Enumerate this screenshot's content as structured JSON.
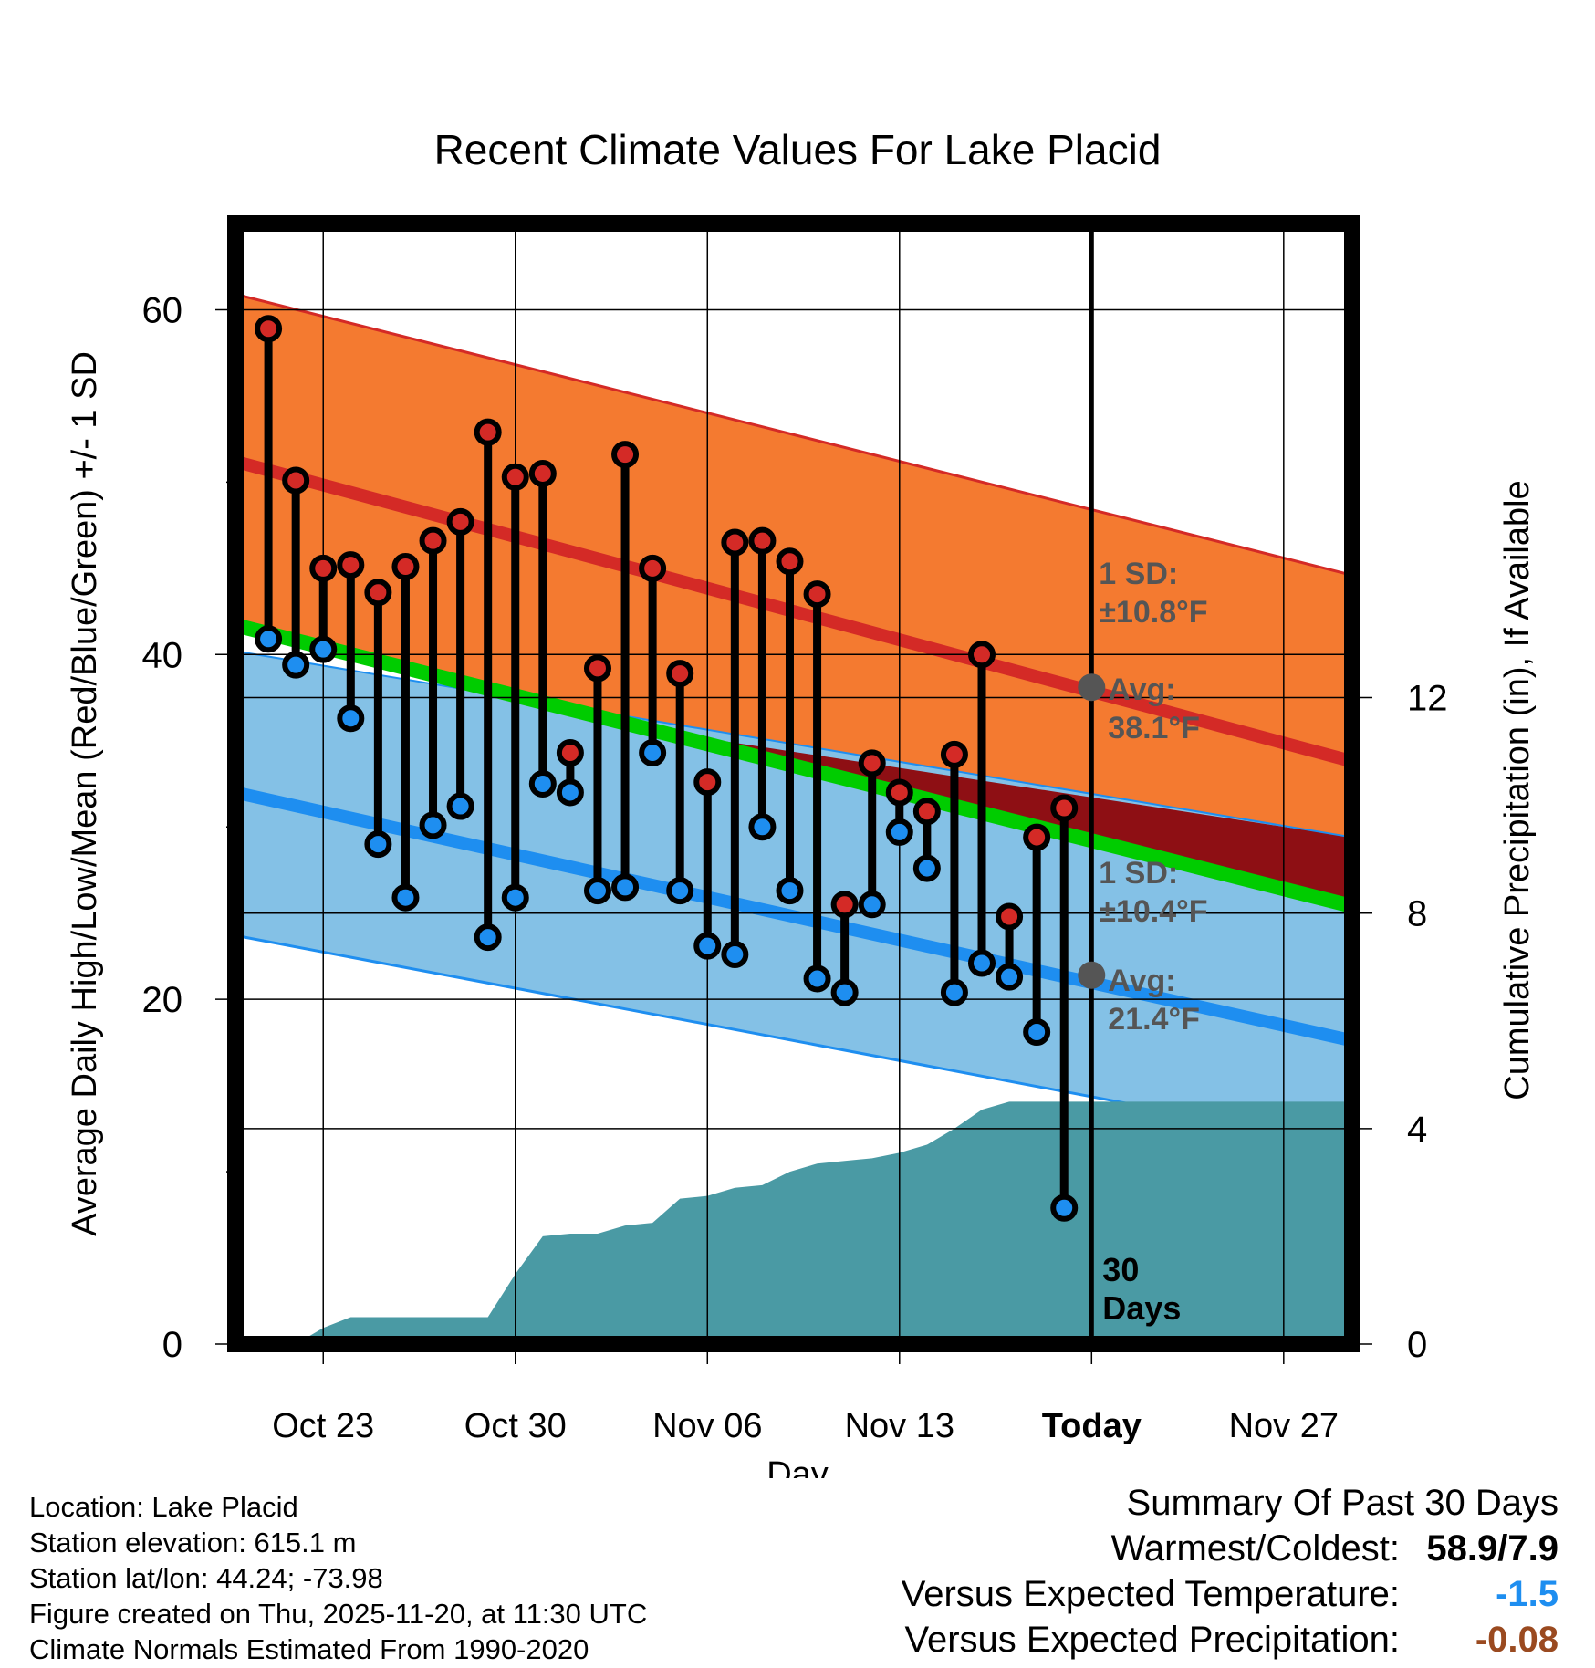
{
  "chart_data": {
    "type": "line",
    "title": "Recent Climate Values For Lake Placid",
    "xlabel": "Day",
    "ylabel": "Average Daily High/Low/Mean (Red/Blue/Green) +/- 1 SD",
    "y2label": "Cumulative Precipitation (in), If Available",
    "ylim": [
      0,
      65
    ],
    "y2lim": [
      0,
      20.8
    ],
    "yticks": [
      0,
      20,
      40,
      60
    ],
    "y2ticks": [
      0,
      4,
      8,
      12
    ],
    "xlim": [
      -3.2,
      37.5
    ],
    "xtick_positions": [
      0,
      7,
      14,
      21,
      28,
      35
    ],
    "xtick_labels": [
      "Oct 23",
      "Oct 30",
      "Nov 06",
      "Nov 13",
      "Today",
      "Nov 27"
    ],
    "today_marker": 28,
    "today_label": "30 Days",
    "normals": {
      "high_mean": [
        51.2,
        33.8
      ],
      "high_upper": [
        60.9,
        44.6
      ],
      "mean": [
        41.7,
        25.4
      ],
      "low_mean": [
        32.0,
        17.6
      ],
      "low_upper": [
        40.2,
        29.4
      ],
      "low_lower": [
        23.7,
        11.5
      ]
    },
    "annotations": [
      {
        "label": "1 SD:",
        "value": "±10.8°F"
      },
      {
        "label": "Avg:",
        "value": "38.1°F"
      },
      {
        "label": "1 SD:",
        "value": "±10.4°F"
      },
      {
        "label": "Avg:",
        "value": "21.4°F"
      }
    ],
    "avg_points": [
      {
        "x": 28,
        "y": 38.1
      },
      {
        "x": 28,
        "y": 21.4
      }
    ],
    "days": [
      -2,
      -1,
      0,
      1,
      2,
      3,
      4,
      5,
      6,
      7,
      8,
      9,
      10,
      11,
      12,
      13,
      14,
      15,
      16,
      17,
      18,
      19,
      20,
      21,
      22,
      23,
      24,
      25,
      26,
      27
    ],
    "highs": [
      58.9,
      50.1,
      45.0,
      45.2,
      43.6,
      45.1,
      46.6,
      47.7,
      52.9,
      50.3,
      50.5,
      34.3,
      39.2,
      51.6,
      45.0,
      38.9,
      32.6,
      46.5,
      46.6,
      45.4,
      43.5,
      25.5,
      33.7,
      32.0,
      30.9,
      34.2,
      40.0,
      24.8,
      29.4,
      31.1
    ],
    "lows": [
      40.9,
      39.4,
      40.3,
      36.3,
      29.0,
      25.9,
      30.1,
      31.2,
      23.6,
      25.9,
      32.5,
      32.0,
      26.3,
      26.5,
      34.3,
      26.3,
      23.1,
      22.6,
      30.0,
      26.3,
      21.2,
      20.4,
      25.5,
      29.7,
      27.6,
      20.4,
      22.1,
      21.3,
      18.1,
      7.9
    ],
    "precip_x": [
      -3.2,
      -1,
      0,
      1,
      2,
      3,
      4,
      5,
      6,
      7,
      8,
      9,
      10,
      11,
      12,
      13,
      14,
      15,
      16,
      17,
      18,
      19,
      20,
      21,
      22,
      23,
      24,
      25,
      26,
      27,
      28,
      37.5
    ],
    "precip_y": [
      0,
      0,
      0.3,
      0.5,
      0.5,
      0.5,
      0.5,
      0.5,
      0.5,
      1.3,
      2.0,
      2.05,
      2.05,
      2.2,
      2.25,
      2.7,
      2.75,
      2.9,
      2.95,
      3.2,
      3.35,
      3.4,
      3.45,
      3.55,
      3.7,
      4.0,
      4.35,
      4.5,
      4.5,
      4.5,
      4.5,
      4.5
    ]
  },
  "info": {
    "location": "Location: Lake Placid",
    "elevation": "Station elevation: 615.1 m",
    "latlon": "Station lat/lon: 44.24; -73.98",
    "created": "Figure created on Thu, 2025-11-20, at 11:30 UTC",
    "normals": "Climate Normals Estimated From 1990-2020"
  },
  "summary": {
    "heading": "Summary Of Past 30 Days",
    "warm_cold_label": "Warmest/Coldest:",
    "warm_cold_value": "58.9/7.9",
    "temp_label": "Versus Expected Temperature:",
    "temp_value": "-1.5",
    "precip_label": "Versus Expected Precipitation:",
    "precip_value": "-0.08"
  },
  "colors": {
    "high_band": "#f47a30",
    "high_line": "#d42a26",
    "low_band": "#84c1e6",
    "low_line": "#1e8ef0",
    "mean_line": "#00cc00",
    "below_mean": "#8e0f14",
    "precip": "#4a9aa4",
    "high_dot": "#d42a26",
    "low_dot": "#1e8ef0",
    "temp_value": "#1e8ef0",
    "precip_value": "#9a4a20",
    "annotation": "#555555"
  }
}
